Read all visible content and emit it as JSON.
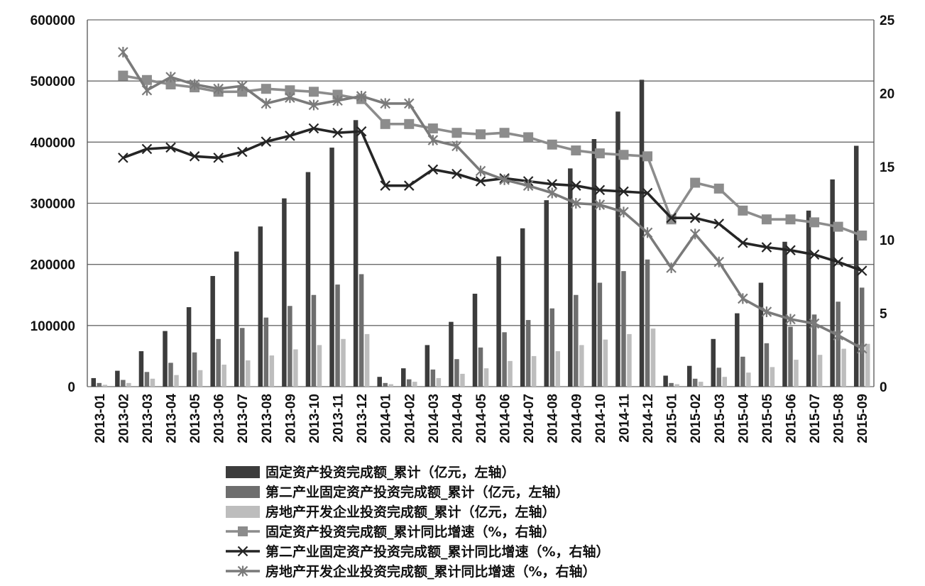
{
  "chart_data": {
    "type": "bar",
    "categories": [
      "2013-01",
      "2013-02",
      "2013-03",
      "2013-04",
      "2013-05",
      "2013-06",
      "2013-07",
      "2013-08",
      "2013-09",
      "2013-10",
      "2013-11",
      "2013-12",
      "2014-01",
      "2014-02",
      "2014-03",
      "2014-04",
      "2014-05",
      "2014-06",
      "2014-07",
      "2014-08",
      "2014-09",
      "2014-10",
      "2014-11",
      "2014-12",
      "2015-01",
      "2015-02",
      "2015-03",
      "2015-04",
      "2015-05",
      "2015-06",
      "2015-07",
      "2015-08",
      "2015-09"
    ],
    "y_left": {
      "min": 0,
      "max": 600000,
      "ticks": [
        "0",
        "100000",
        "200000",
        "300000",
        "400000",
        "500000",
        "600000"
      ]
    },
    "y_right": {
      "min": 0,
      "max": 25,
      "ticks": [
        "0",
        "5",
        "10",
        "15",
        "20",
        "25"
      ]
    },
    "grid": "horizontal",
    "legend_position": "bottom",
    "bar_series": [
      {
        "name": "固定资产投资完成额_累计（亿元，左轴）",
        "color": "#3c3c3c",
        "values": [
          14000,
          26000,
          58000,
          91000,
          130000,
          181000,
          221000,
          262000,
          308000,
          351000,
          391000,
          436000,
          16000,
          30000,
          68000,
          106000,
          152000,
          213000,
          259000,
          305000,
          357000,
          405000,
          450000,
          502000,
          18000,
          34000,
          78000,
          120000,
          170000,
          237000,
          288000,
          339000,
          394000
        ]
      },
      {
        "name": "第二产业固定资产投资完成额_累计（亿元，左轴）",
        "color": "#6e6e6e",
        "values": [
          6000,
          11000,
          24000,
          39000,
          56000,
          78000,
          96000,
          113000,
          132000,
          150000,
          167000,
          184000,
          6000,
          12000,
          28000,
          45000,
          64000,
          89000,
          109000,
          128000,
          150000,
          170000,
          189000,
          208000,
          6000,
          13000,
          31000,
          49000,
          71000,
          98000,
          118000,
          139000,
          162000
        ]
      },
      {
        "name": "房地产开发企业投资完成额_累计（亿元，左轴）",
        "color": "#bdbdbd",
        "values": [
          3000,
          6000,
          13000,
          19000,
          27000,
          36000,
          43000,
          51000,
          61000,
          68000,
          78000,
          86000,
          4000,
          8000,
          14000,
          21000,
          30000,
          42000,
          50000,
          58000,
          68000,
          77000,
          86000,
          95000,
          4000,
          8000,
          16000,
          23000,
          32000,
          44000,
          52000,
          62000,
          70000
        ]
      }
    ],
    "line_series": [
      {
        "name": "固定资产投资完成额_累计同比增速（%，右轴）",
        "color": "#8c8c8c",
        "marker": "square",
        "values": [
          null,
          21.2,
          20.9,
          20.6,
          20.4,
          20.1,
          20.1,
          20.3,
          20.2,
          20.1,
          19.9,
          19.6,
          17.9,
          17.9,
          17.6,
          17.3,
          17.2,
          17.3,
          17.0,
          16.5,
          16.1,
          15.9,
          15.8,
          15.7,
          11.4,
          13.9,
          13.5,
          12.0,
          11.4,
          11.4,
          11.2,
          10.9,
          10.3
        ]
      },
      {
        "name": "第二产业固定资产投资完成额_累计同比增速（%，右轴）",
        "color": "#252525",
        "marker": "x",
        "values": [
          null,
          15.6,
          16.2,
          16.3,
          15.7,
          15.6,
          16.0,
          16.7,
          17.1,
          17.6,
          17.3,
          17.4,
          13.7,
          13.7,
          14.8,
          14.5,
          14.0,
          14.2,
          14.0,
          13.8,
          13.7,
          13.4,
          13.3,
          13.2,
          11.5,
          11.5,
          11.1,
          9.8,
          9.5,
          9.3,
          9.0,
          8.5,
          7.9
        ]
      },
      {
        "name": "房地产开发企业投资完成额_累计同比增速（%，右轴）",
        "color": "#7a7a7a",
        "marker": "asterisk",
        "values": [
          null,
          22.8,
          20.2,
          21.1,
          20.6,
          20.3,
          20.5,
          19.3,
          19.7,
          19.2,
          19.5,
          19.8,
          19.3,
          19.3,
          16.8,
          16.4,
          14.7,
          14.1,
          13.7,
          13.2,
          12.5,
          12.4,
          11.9,
          10.5,
          8.1,
          10.4,
          8.5,
          6.0,
          5.1,
          4.6,
          4.3,
          3.5,
          2.6
        ]
      }
    ]
  }
}
